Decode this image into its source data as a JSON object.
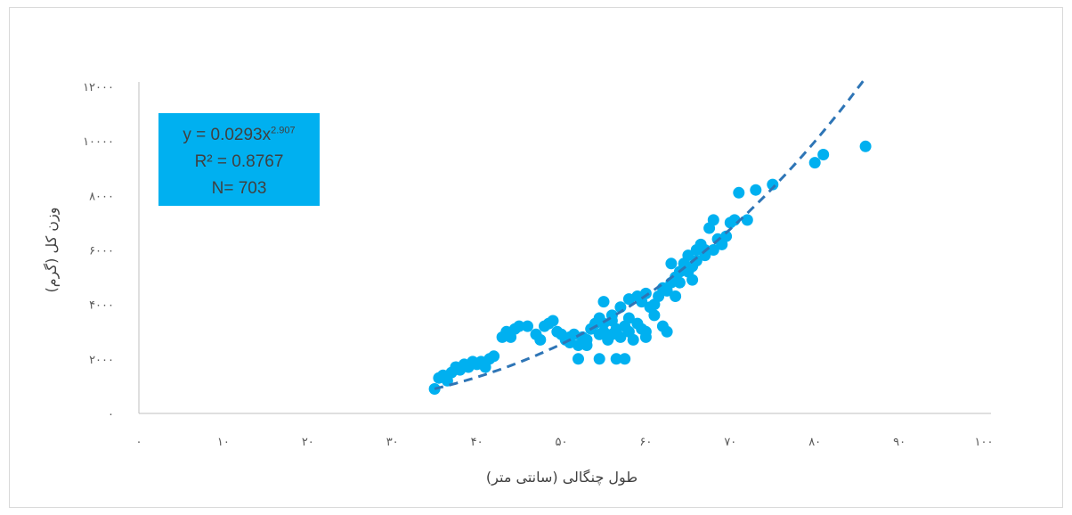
{
  "chart_data": {
    "type": "scatter",
    "title": "",
    "xlabel": "طول چنگالی (سانتی متر)",
    "ylabel": "وزن کل (گرم)",
    "xlim": [
      0,
      100
    ],
    "ylim": [
      0,
      12000
    ],
    "x_ticks": [
      0,
      10,
      20,
      30,
      40,
      50,
      60,
      70,
      80,
      90,
      100
    ],
    "x_tick_labels": [
      "۰",
      "۱۰",
      "۲۰",
      "۳۰",
      "۴۰",
      "۵۰",
      "۶۰",
      "۷۰",
      "۸۰",
      "۹۰",
      "۱۰۰"
    ],
    "y_ticks": [
      0,
      2000,
      4000,
      6000,
      8000,
      10000,
      12000
    ],
    "y_tick_labels": [
      "۰",
      "۲۰۰۰",
      "۴۰۰۰",
      "۶۰۰۰",
      "۸۰۰۰",
      "۱۰۰۰۰",
      "۱۲۰۰۰"
    ],
    "grid": false,
    "marker_color": "#00b0f0",
    "trendline_color": "#2e75b6",
    "trendline": {
      "type": "power",
      "coefficient": 0.0293,
      "exponent_label": "2.907",
      "x_range": [
        35,
        86
      ],
      "equation_text": "y = 0.0293x",
      "equation_exponent": "2.907",
      "r_squared_text": "R² = 0.8767",
      "n_text": "N= 703"
    },
    "points": [
      [
        35,
        900
      ],
      [
        35.5,
        1300
      ],
      [
        36,
        1400
      ],
      [
        36.5,
        1200
      ],
      [
        37,
        1500
      ],
      [
        37.5,
        1700
      ],
      [
        38,
        1600
      ],
      [
        38.5,
        1800
      ],
      [
        39,
        1700
      ],
      [
        39.5,
        1900
      ],
      [
        40,
        1800
      ],
      [
        40.5,
        1900
      ],
      [
        41,
        1700
      ],
      [
        41.5,
        2000
      ],
      [
        42,
        2100
      ],
      [
        43,
        2800
      ],
      [
        43.5,
        3000
      ],
      [
        44,
        2800
      ],
      [
        44.5,
        3100
      ],
      [
        45,
        3200
      ],
      [
        46,
        3200
      ],
      [
        47,
        2900
      ],
      [
        47.5,
        2700
      ],
      [
        48,
        3200
      ],
      [
        48.5,
        3300
      ],
      [
        49,
        3400
      ],
      [
        49.5,
        3000
      ],
      [
        50,
        2900
      ],
      [
        50.5,
        2700
      ],
      [
        51,
        2600
      ],
      [
        51.5,
        2900
      ],
      [
        52,
        2500
      ],
      [
        52.5,
        2800
      ],
      [
        53,
        2700
      ],
      [
        53.5,
        3100
      ],
      [
        54,
        3300
      ],
      [
        54.5,
        2900
      ],
      [
        55,
        3000
      ],
      [
        55.5,
        2700
      ],
      [
        56,
        2900
      ],
      [
        56.5,
        3100
      ],
      [
        57,
        2800
      ],
      [
        57.5,
        3200
      ],
      [
        58,
        3000
      ],
      [
        58.5,
        2700
      ],
      [
        59,
        3300
      ],
      [
        59.5,
        3100
      ],
      [
        60,
        3000
      ],
      [
        55,
        4100
      ],
      [
        54.5,
        3500
      ],
      [
        56,
        3600
      ],
      [
        57,
        3900
      ],
      [
        58,
        4200
      ],
      [
        59,
        4300
      ],
      [
        59.5,
        4100
      ],
      [
        60,
        4400
      ],
      [
        60.5,
        3900
      ],
      [
        61,
        4000
      ],
      [
        61.5,
        4300
      ],
      [
        62,
        4600
      ],
      [
        62.5,
        4500
      ],
      [
        63,
        4800
      ],
      [
        63.5,
        5000
      ],
      [
        64,
        5200
      ],
      [
        64.5,
        5500
      ],
      [
        65,
        5800
      ],
      [
        65.5,
        5400
      ],
      [
        66,
        6000
      ],
      [
        66.5,
        6200
      ],
      [
        67,
        6000
      ],
      [
        67.5,
        6800
      ],
      [
        68,
        7100
      ],
      [
        68.5,
        6400
      ],
      [
        69,
        6200
      ],
      [
        69.5,
        6500
      ],
      [
        70,
        7000
      ],
      [
        70.5,
        7100
      ],
      [
        71,
        8100
      ],
      [
        72,
        7100
      ],
      [
        73,
        8200
      ],
      [
        75,
        8400
      ],
      [
        80,
        9200
      ],
      [
        81,
        9500
      ],
      [
        86,
        9800
      ],
      [
        52,
        2000
      ],
      [
        54.5,
        2000
      ],
      [
        56.5,
        2000
      ],
      [
        57.5,
        2000
      ],
      [
        62.5,
        3000
      ],
      [
        61,
        3600
      ],
      [
        62,
        3200
      ],
      [
        58,
        3500
      ],
      [
        56,
        3400
      ],
      [
        60,
        2800
      ],
      [
        55,
        3300
      ],
      [
        53,
        2500
      ],
      [
        51,
        2800
      ],
      [
        63,
        5500
      ],
      [
        64,
        4800
      ],
      [
        65,
        5200
      ],
      [
        66,
        5600
      ],
      [
        67,
        5800
      ],
      [
        68,
        6000
      ],
      [
        65.5,
        4900
      ],
      [
        63.5,
        4300
      ]
    ]
  }
}
